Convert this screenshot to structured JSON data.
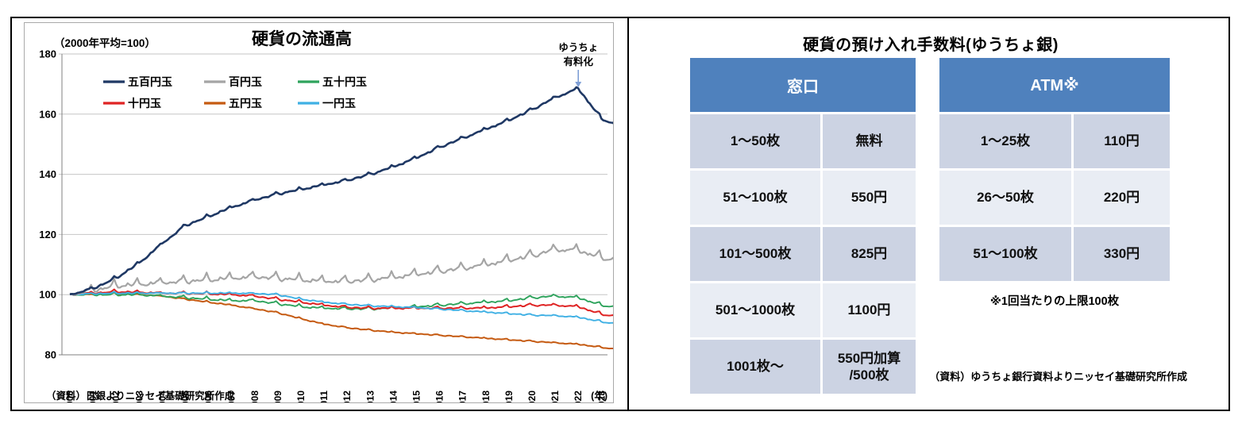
{
  "chart_data": {
    "type": "line",
    "title": "硬貨の流通高",
    "unit_note": "（2000年平均=100）",
    "year_axis_label": "(年)",
    "source": "（資料）日銀よりニッセイ基礎研究所作成",
    "annotation": {
      "lines": [
        "ゆうちょ",
        "有料化"
      ],
      "x_year": 2022,
      "arrow_color": "#7F9FD6"
    },
    "ylim": [
      80,
      180
    ],
    "yticks": [
      180,
      160,
      140,
      120,
      100,
      80
    ],
    "xticks": [
      2000,
      2001,
      2002,
      2003,
      2004,
      2005,
      2006,
      2007,
      2008,
      2009,
      2010,
      2011,
      2012,
      2013,
      2014,
      2015,
      2016,
      2017,
      2018,
      2019,
      2020,
      2021,
      2022,
      2023
    ],
    "x_range": [
      2000,
      2023.92
    ],
    "grid": true,
    "legend_rows": [
      [
        0,
        1,
        2
      ],
      [
        3,
        4,
        5
      ]
    ],
    "draw_order": [
      4,
      2,
      3,
      5,
      1,
      0
    ],
    "series": [
      {
        "key": "coin-500",
        "name": "五百円玉",
        "color": "#1F3864",
        "width": 2.6,
        "season": 0.7,
        "annual": [
          100,
          102,
          105.5,
          110.5,
          117,
          123,
          126,
          129,
          131.5,
          133.5,
          135,
          136.5,
          138,
          140,
          142.5,
          145.5,
          149,
          152,
          155,
          158,
          161.5,
          165.5,
          168.5,
          158.5
        ],
        "end": 155.5
      },
      {
        "key": "coin-100",
        "name": "百円玉",
        "color": "#A5A5A5",
        "width": 2.2,
        "season": 2.0,
        "annual": [
          100,
          101.5,
          103,
          103.5,
          104,
          104.5,
          105,
          105.5,
          106,
          105.5,
          105,
          104.5,
          104.5,
          105,
          105.8,
          106.8,
          107.8,
          108.8,
          110,
          111.5,
          113,
          115,
          114.8,
          112.3
        ],
        "end": 111.2
      },
      {
        "key": "coin-50",
        "name": "五十円玉",
        "color": "#2EA35C",
        "width": 1.9,
        "season": 0.7,
        "annual": [
          100,
          100,
          100,
          100,
          99.5,
          99,
          98.5,
          98,
          98,
          97,
          96,
          95.5,
          95.3,
          95.3,
          95.5,
          96,
          96.5,
          97,
          97.5,
          98,
          99,
          99.5,
          99,
          96.5
        ],
        "end": 95.5
      },
      {
        "key": "coin-10",
        "name": "十円玉",
        "color": "#DF2323",
        "width": 2.0,
        "season": 0.6,
        "annual": [
          100,
          100.5,
          101,
          100.8,
          100.5,
          100.5,
          100.3,
          100,
          99.5,
          98.5,
          97.5,
          96.5,
          95.8,
          95.5,
          95.5,
          95.5,
          95.5,
          95.5,
          95.6,
          96,
          96.5,
          96.5,
          96,
          93.5
        ],
        "end": 92.5
      },
      {
        "key": "coin-5",
        "name": "五円玉",
        "color": "#C55A11",
        "width": 2.0,
        "season": 0.25,
        "annual": [
          100,
          100,
          100.3,
          100,
          99.5,
          98.5,
          97.5,
          96.5,
          95.3,
          94,
          92,
          90.2,
          89,
          88.2,
          87.5,
          87,
          86.5,
          86,
          85.5,
          85,
          84.5,
          84,
          83.5,
          82.5
        ],
        "end": 81.5
      },
      {
        "key": "coin-1",
        "name": "一円玉",
        "color": "#3FB0E4",
        "width": 1.9,
        "season": 0.35,
        "annual": [
          100,
          100.3,
          100.5,
          100.5,
          100.5,
          100.5,
          100.5,
          100.5,
          100.4,
          100,
          98.5,
          97.5,
          96.8,
          96.3,
          96,
          95.7,
          95.2,
          94.7,
          94.2,
          93.7,
          93.2,
          93,
          92.5,
          91
        ],
        "end": 90
      }
    ]
  },
  "right_panel": {
    "title": "硬貨の預け入れ手数料(ゆうちょ銀)",
    "window_table": {
      "header": "窓口",
      "rows": [
        [
          "1～50枚",
          "無料"
        ],
        [
          "51～100枚",
          "550円"
        ],
        [
          "101～500枚",
          "825円"
        ],
        [
          "501～1000枚",
          "1100円"
        ],
        [
          "1001枚～",
          "550円加算\n/500枚"
        ]
      ]
    },
    "atm_table": {
      "header": "ATM※",
      "rows": [
        [
          "1～25枚",
          "110円"
        ],
        [
          "26～50枚",
          "220円"
        ],
        [
          "51～100枚",
          "330円"
        ]
      ]
    },
    "note": "※1回当たりの上限100枚",
    "source": "（資料）ゆうちょ銀行資料よりニッセイ基礎研究所作成",
    "colors": {
      "header_bg": "#4F81BD",
      "header_text": "#FFFFFF",
      "row_dark": "#CCD3E3",
      "row_light": "#E9EDF4"
    }
  }
}
